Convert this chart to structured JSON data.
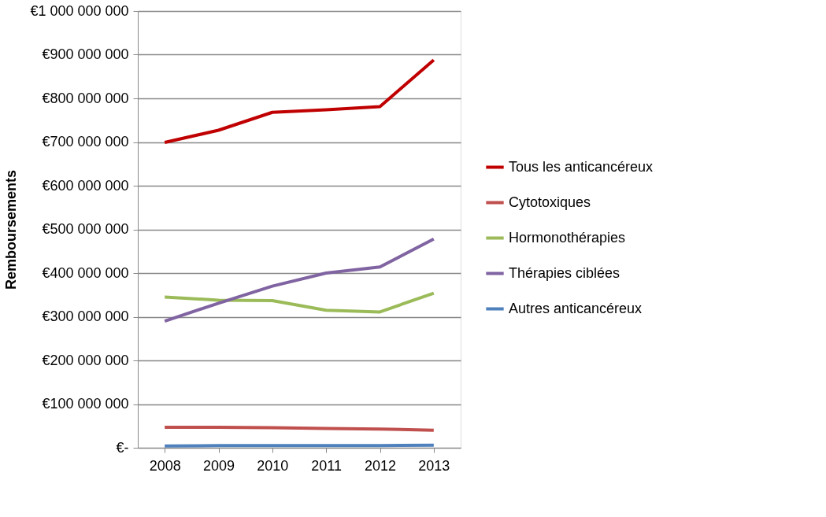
{
  "chart_data": {
    "type": "line",
    "ylabel": "Remboursements",
    "categories": [
      "2008",
      "2009",
      "2010",
      "2011",
      "2012",
      "2013"
    ],
    "series": [
      {
        "name": "Tous les anticancéreux",
        "color": "#c00000",
        "values": [
          699000000,
          727000000,
          768000000,
          774000000,
          781000000,
          888000000
        ]
      },
      {
        "name": "Cytotoxiques",
        "color": "#c0504d",
        "values": [
          47000000,
          47000000,
          46000000,
          44000000,
          43000000,
          40000000
        ]
      },
      {
        "name": "Hormonothérapies",
        "color": "#9bbb59",
        "values": [
          345000000,
          338000000,
          337000000,
          315000000,
          311000000,
          354000000
        ]
      },
      {
        "name": "Thérapies ciblées",
        "color": "#8064a2",
        "values": [
          290000000,
          331000000,
          370000000,
          400000000,
          414000000,
          478000000
        ]
      },
      {
        "name": "Autres anticancéreux",
        "color": "#4f81bd",
        "values": [
          4000000,
          5000000,
          5000000,
          5000000,
          5000000,
          6000000
        ]
      }
    ],
    "ylim": [
      0,
      1000000000
    ],
    "yticks": [
      {
        "value": 0,
        "label": "€-"
      },
      {
        "value": 100000000,
        "label": "€100 000 000"
      },
      {
        "value": 200000000,
        "label": "€200 000 000"
      },
      {
        "value": 300000000,
        "label": "€300 000 000"
      },
      {
        "value": 400000000,
        "label": "€400 000 000"
      },
      {
        "value": 500000000,
        "label": "€500 000 000"
      },
      {
        "value": 600000000,
        "label": "€600 000 000"
      },
      {
        "value": 700000000,
        "label": "€700 000 000"
      },
      {
        "value": 800000000,
        "label": "€800 000 000"
      },
      {
        "value": 900000000,
        "label": "€900 000 000"
      },
      {
        "value": 1000000000,
        "label": "€1 000 000 000"
      }
    ],
    "grid": "y",
    "legend": "right",
    "marker": "none",
    "line_style": "solid"
  }
}
